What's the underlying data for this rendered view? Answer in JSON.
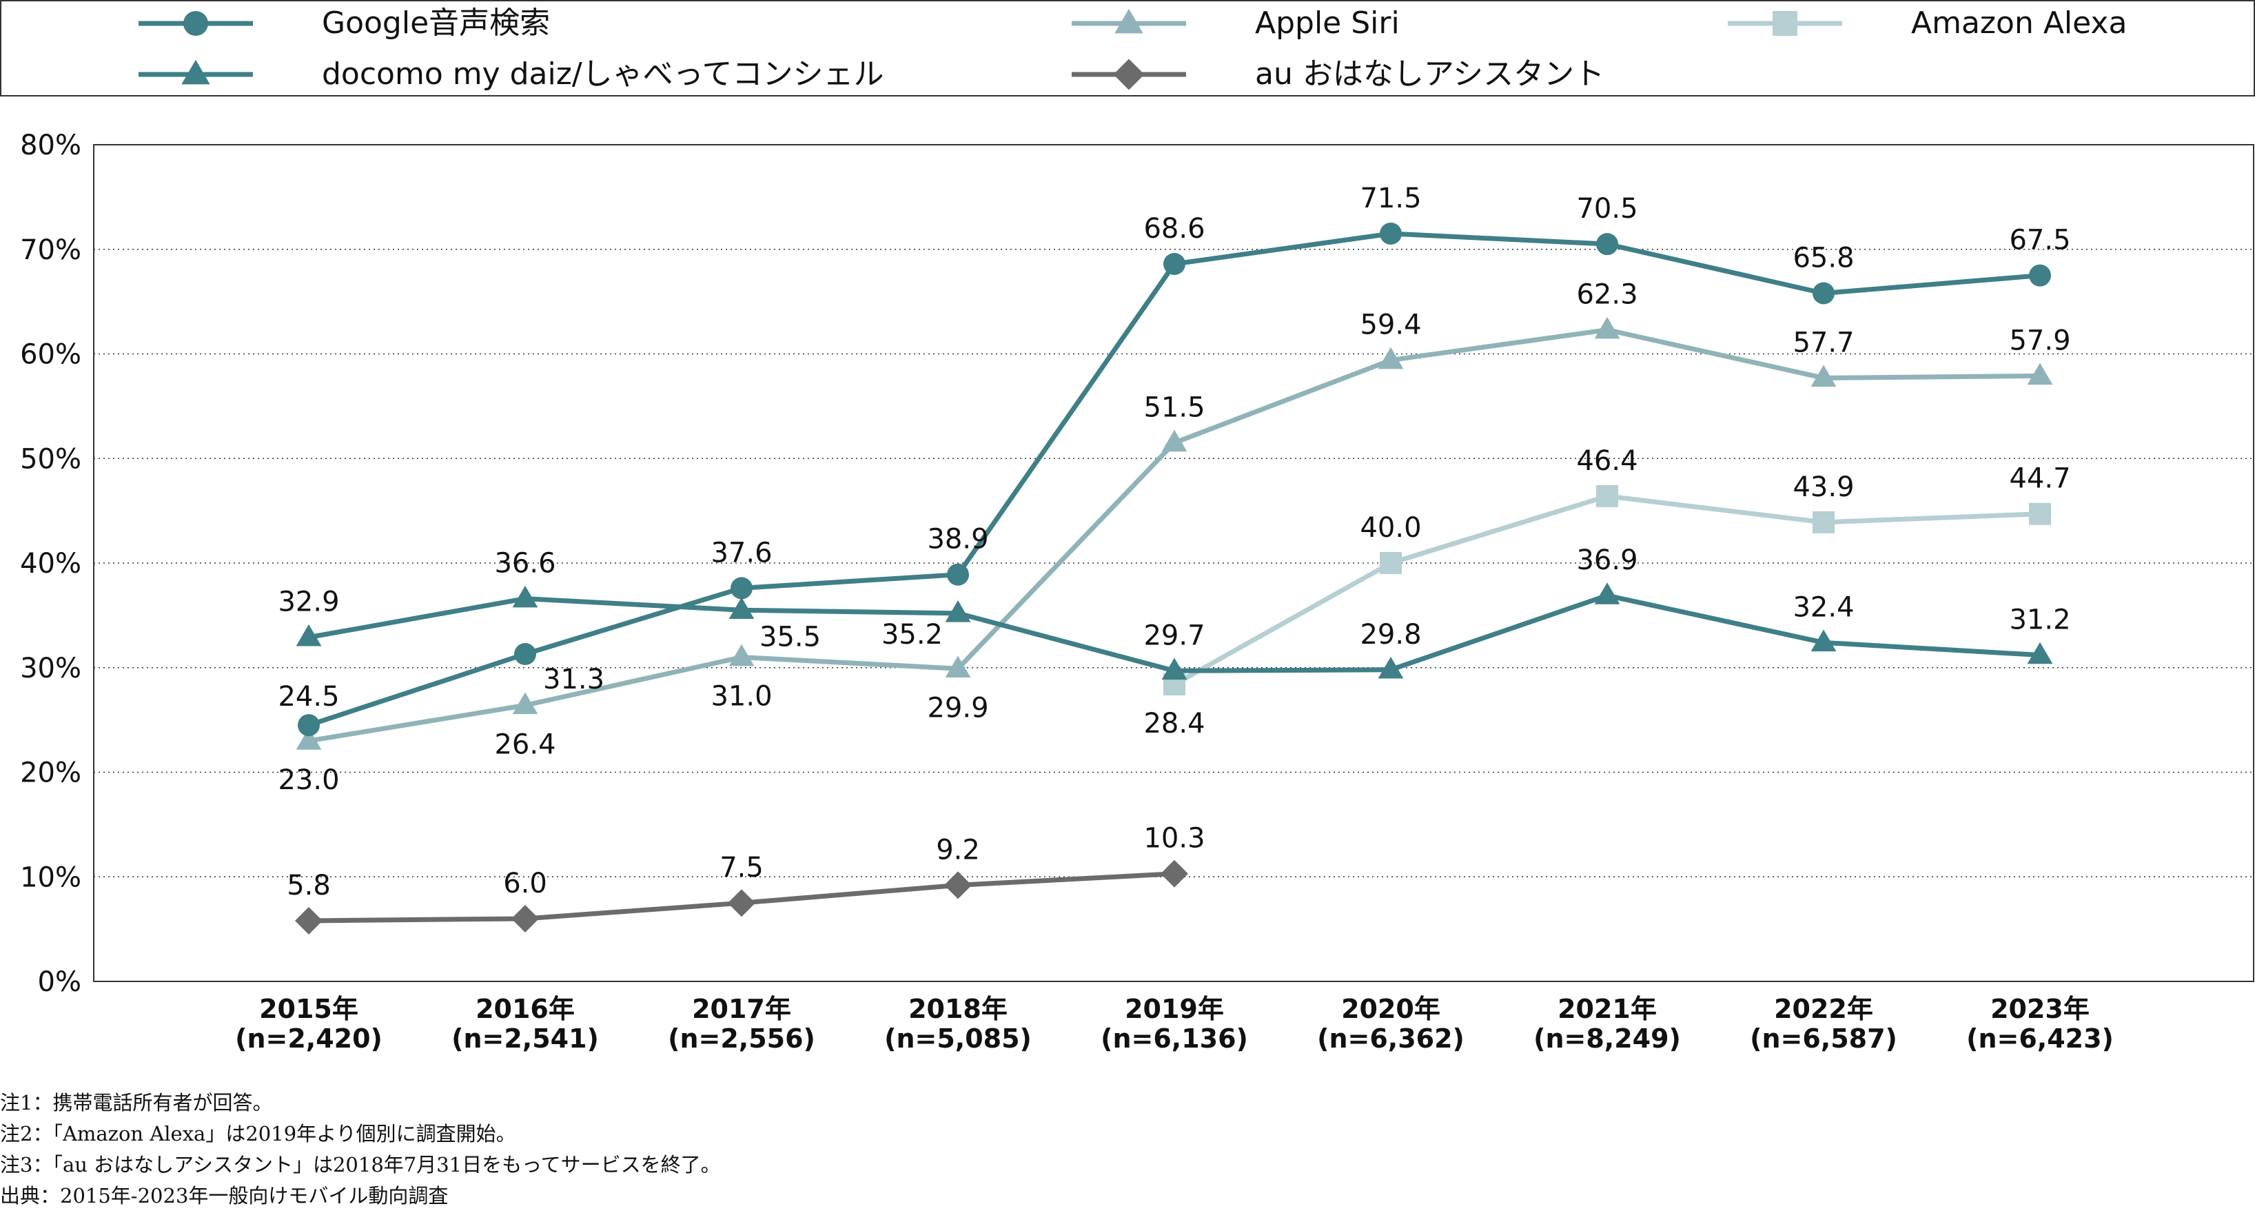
{
  "chart_data": {
    "type": "line",
    "y_unit": "%",
    "ylim": [
      0,
      80
    ],
    "yticks": [
      "0%",
      "10%",
      "20%",
      "30%",
      "40%",
      "50%",
      "60%",
      "70%",
      "80%"
    ],
    "grid": true,
    "legend_position": "top",
    "categories": [
      {
        "year": "2015年",
        "n": "(n=2,420)"
      },
      {
        "year": "2016年",
        "n": "(n=2,541)"
      },
      {
        "year": "2017年",
        "n": "(n=2,556)"
      },
      {
        "year": "2018年",
        "n": "(n=5,085)"
      },
      {
        "year": "2019年",
        "n": "(n=6,136)"
      },
      {
        "year": "2020年",
        "n": "(n=6,362)"
      },
      {
        "year": "2021年",
        "n": "(n=8,249)"
      },
      {
        "year": "2022年",
        "n": "(n=6,587)"
      },
      {
        "year": "2023年",
        "n": "(n=6,423)"
      }
    ],
    "series": [
      {
        "name": "Google音声検索",
        "color": "#3f7f87",
        "marker": "circle",
        "values": [
          24.5,
          31.3,
          37.6,
          38.9,
          68.6,
          71.5,
          70.5,
          65.8,
          67.5
        ],
        "labels": [
          "24.5",
          "31.3",
          "37.6",
          "38.9",
          "68.6",
          "71.5",
          "70.5",
          "65.8",
          "67.5"
        ]
      },
      {
        "name": "Apple Siri",
        "color": "#8fb3b9",
        "marker": "triangle",
        "values": [
          23.0,
          26.4,
          31.0,
          29.9,
          51.5,
          59.4,
          62.3,
          57.7,
          57.9
        ],
        "labels": [
          "23.0",
          "26.4",
          "31.0",
          "29.9",
          "51.5",
          "59.4",
          "62.3",
          "57.7",
          "57.9"
        ]
      },
      {
        "name": "Amazon Alexa",
        "color": "#b5cfd3",
        "marker": "square",
        "values": [
          null,
          null,
          null,
          null,
          28.4,
          40.0,
          46.4,
          43.9,
          44.7
        ],
        "labels": [
          null,
          null,
          null,
          null,
          "28.4",
          "40.0",
          "46.4",
          "43.9",
          "44.7"
        ]
      },
      {
        "name": "docomo my daiz/しゃべってコンシェル",
        "color": "#3f7f87",
        "marker": "triangle",
        "values": [
          32.9,
          36.6,
          35.5,
          35.2,
          29.7,
          29.8,
          36.9,
          32.4,
          31.2
        ],
        "labels": [
          "32.9",
          "36.6",
          "35.5",
          "35.2",
          "29.7",
          "29.8",
          "36.9",
          "32.4",
          "31.2"
        ]
      },
      {
        "name": "au おはなしアシスタント",
        "color": "#6b6b6b",
        "marker": "diamond",
        "values": [
          5.8,
          6.0,
          7.5,
          9.2,
          10.3,
          null,
          null,
          null,
          null
        ],
        "labels": [
          "5.8",
          "6.0",
          "7.5",
          "9.2",
          "10.3",
          null,
          null,
          null,
          null
        ]
      }
    ]
  },
  "notes": [
    "注1：携帯電話所有者が回答。",
    "注2：「Amazon Alexa」は2019年より個別に調査開始。",
    "注3：「au おはなしアシスタント」は2018年7月31日をもってサービスを終了。",
    "出典：2015年-2023年一般向けモバイル動向調査"
  ]
}
